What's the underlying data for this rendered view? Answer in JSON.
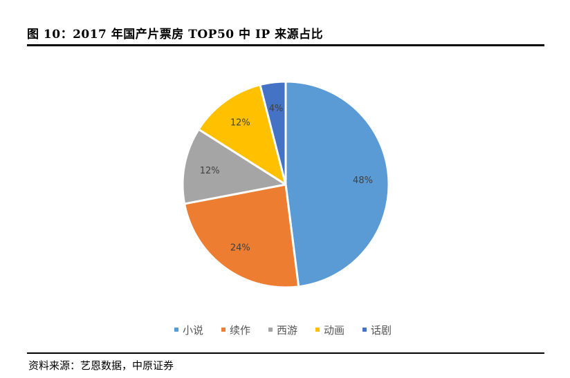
{
  "header": {
    "title": "图 10：2017 年国产片票房 TOP50 中 IP 来源占比"
  },
  "footer": {
    "source": "资料来源：艺恩数据，中原证券"
  },
  "chart_data": {
    "type": "pie",
    "title": "图 10：2017 年国产片票房 TOP50 中 IP 来源占比",
    "categories": [
      "小说",
      "续作",
      "西游",
      "动画",
      "话剧"
    ],
    "values": [
      48,
      24,
      12,
      12,
      4
    ],
    "labels": [
      "48%",
      "24%",
      "12%",
      "12%",
      "4%"
    ],
    "colors": [
      "#5B9BD5",
      "#ED7D31",
      "#A5A5A5",
      "#FFC000",
      "#4472C4"
    ],
    "start": "12 o'clock, clockwise",
    "legend": "bottom"
  }
}
